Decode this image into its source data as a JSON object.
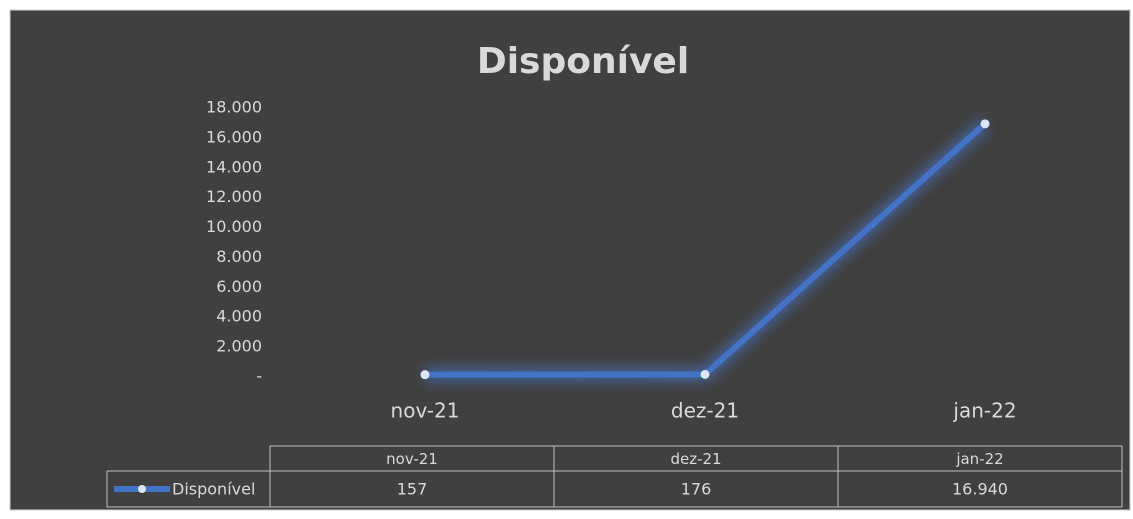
{
  "chart_data": {
    "type": "line",
    "title": "Disponível",
    "categories": [
      "nov-21",
      "dez-21",
      "jan-22"
    ],
    "series": [
      {
        "name": "Disponível",
        "color": "#4472c4",
        "values": [
          157,
          176,
          16940
        ],
        "value_labels": [
          "157",
          "176",
          "16.940"
        ]
      }
    ],
    "ylim": [
      0,
      18000
    ],
    "yticks": [
      {
        "value": 0,
        "label": "-"
      },
      {
        "value": 2000,
        "label": "2.000"
      },
      {
        "value": 4000,
        "label": "4.000"
      },
      {
        "value": 6000,
        "label": "6.000"
      },
      {
        "value": 8000,
        "label": "8.000"
      },
      {
        "value": 10000,
        "label": "10.000"
      },
      {
        "value": 12000,
        "label": "12.000"
      },
      {
        "value": 14000,
        "label": "14.000"
      },
      {
        "value": 16000,
        "label": "16.000"
      },
      {
        "value": 18000,
        "label": "18.000"
      }
    ],
    "grid": false
  }
}
